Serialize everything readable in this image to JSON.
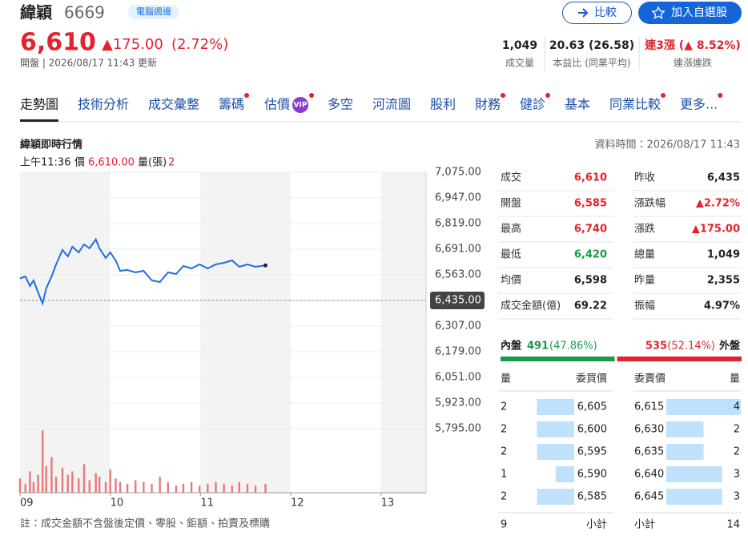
{
  "header": {
    "name": "緯穎",
    "code": "6669",
    "tag": "電腦週邊",
    "compare_button": "比較",
    "watchlist_button": "加入自選股",
    "price": "6,610",
    "change": "▲175.00",
    "change_pct": "(2.72%)",
    "status": "開盤 | 2026/08/17 11:43 更新",
    "stats": [
      {
        "value": "1,049",
        "label": "成交量"
      },
      {
        "value": "20.63 (26.58)",
        "label": "本益比 (同業平均)"
      },
      {
        "value": "連3漲 (▲ 8.52%)",
        "label": "連漲連跌",
        "color": "#e3232d"
      }
    ]
  },
  "tabs": [
    {
      "label": "走勢圖",
      "active": true
    },
    {
      "label": "技術分析"
    },
    {
      "label": "成交彙整"
    },
    {
      "label": "籌碼",
      "dot": true
    },
    {
      "label": "估價",
      "badge": "VIP",
      "dot": true
    },
    {
      "label": "多空"
    },
    {
      "label": "河流圖"
    },
    {
      "label": "股利"
    },
    {
      "label": "財務",
      "dot": true
    },
    {
      "label": "健診",
      "dot": true
    },
    {
      "label": "基本"
    },
    {
      "label": "同業比較",
      "dot": true
    },
    {
      "label": "更多...",
      "dot": true
    }
  ],
  "section": {
    "title": "緯穎即時行情",
    "data_time": "資料時間：2026/08/17 11:43",
    "cursor": {
      "time": "上午11:36",
      "price_label": "價",
      "price": "6,610.00",
      "volume_label": "量(張)",
      "volume": "2"
    }
  },
  "chart_data": {
    "type": "line",
    "x": [
      9,
      9.06,
      9.11,
      9.15,
      9.2,
      9.25,
      9.29,
      9.35,
      9.4,
      9.47,
      9.53,
      9.58,
      9.65,
      9.71,
      9.77,
      9.84,
      9.88,
      9.95,
      10.0,
      10.06,
      10.11,
      10.19,
      10.28,
      10.37,
      10.46,
      10.55,
      10.64,
      10.73,
      10.81,
      10.9,
      10.99,
      11.08,
      11.17,
      11.26,
      11.35,
      11.43,
      11.52,
      11.61,
      11.72
    ],
    "series": [
      {
        "type": "line",
        "color": "#1f6fe0",
        "values": [
          6545,
          6555,
          6507,
          6535,
          6475,
          6420,
          6495,
          6555,
          6615,
          6687,
          6655,
          6703,
          6675,
          6715,
          6695,
          6740,
          6695,
          6647,
          6675,
          6635,
          6583,
          6587,
          6575,
          6583,
          6535,
          6527,
          6575,
          6567,
          6607,
          6595,
          6615,
          6595,
          6615,
          6623,
          6635,
          6603,
          6615,
          6603,
          6610
        ]
      },
      {
        "type": "bar",
        "color": "#e8797b",
        "values": [
          8,
          5,
          12,
          6,
          10,
          35,
          15,
          20,
          9,
          14,
          10,
          12,
          8,
          16,
          7,
          11,
          9,
          6,
          13,
          8,
          6,
          5,
          7,
          6,
          5,
          9,
          6,
          4,
          5,
          6,
          4,
          5,
          6,
          5,
          4,
          6,
          5,
          4,
          5
        ]
      }
    ],
    "xlim": [
      9,
      13.5
    ],
    "xticks": [
      {
        "value": 9,
        "label": "09"
      },
      {
        "value": 10,
        "label": "10"
      },
      {
        "value": 11,
        "label": "11"
      },
      {
        "value": 12,
        "label": "12"
      },
      {
        "value": 13,
        "label": "13"
      }
    ],
    "ylim": [
      5795,
      7075
    ],
    "yticks": [
      {
        "value": 7075,
        "label": "7,075.00"
      },
      {
        "value": 6947,
        "label": "6,947.00"
      },
      {
        "value": 6819,
        "label": "6,819.00"
      },
      {
        "value": 6691,
        "label": "6,691.00"
      },
      {
        "value": 6563,
        "label": "6,563.00"
      },
      {
        "value": 6435,
        "label": "6,435.00"
      },
      {
        "value": 6307,
        "label": "6,307.00"
      },
      {
        "value": 6179,
        "label": "6,179.00"
      },
      {
        "value": 6051,
        "label": "6,051.00"
      },
      {
        "value": 5923,
        "label": "5,923.00"
      },
      {
        "value": 5795,
        "label": "5,795.00"
      }
    ],
    "reference_line": 6435,
    "grid": true
  },
  "quote": {
    "rows": [
      [
        {
          "text": "成交"
        },
        {
          "text": "6,610",
          "color": "#e3232d"
        },
        {
          "text": "昨收"
        },
        {
          "text": "6,435"
        }
      ],
      [
        {
          "text": "開盤"
        },
        {
          "text": "6,585",
          "color": "#e3232d"
        },
        {
          "text": "漲跌幅"
        },
        {
          "text": "▲2.72%",
          "color": "#e3232d"
        }
      ],
      [
        {
          "text": "最高"
        },
        {
          "text": "6,740",
          "color": "#e3232d"
        },
        {
          "text": "漲跌"
        },
        {
          "text": "▲175.00",
          "color": "#e3232d"
        }
      ],
      [
        {
          "text": "最低"
        },
        {
          "text": "6,420",
          "color": "#1a9a4a"
        },
        {
          "text": "總量"
        },
        {
          "text": "1,049"
        }
      ],
      [
        {
          "text": "均價"
        },
        {
          "text": "6,598"
        },
        {
          "text": "昨量"
        },
        {
          "text": "2,355"
        }
      ],
      [
        {
          "text": "成交金額(億)"
        },
        {
          "text": "69.22"
        },
        {
          "text": "振幅"
        },
        {
          "text": "4.97%"
        }
      ]
    ]
  },
  "flow": {
    "inner_label": "內盤",
    "inner": "491",
    "inner_pct": "(47.86%)",
    "outer": "535",
    "outer_pct": "(52.14%)",
    "outer_label": "外盤"
  },
  "order_book": {
    "headers": [
      "量",
      "委買價",
      "委賣價",
      "量"
    ],
    "rows": [
      [
        "2",
        "6,605",
        "6,615",
        "4"
      ],
      [
        "2",
        "6,600",
        "6,630",
        "2"
      ],
      [
        "2",
        "6,595",
        "6,635",
        "2"
      ],
      [
        "1",
        "6,590",
        "6,640",
        "3"
      ],
      [
        "2",
        "6,585",
        "6,645",
        "3"
      ]
    ],
    "totals": [
      "9",
      "小計",
      "小計",
      "14"
    ]
  },
  "footnote": "註：成交金額不含盤後定價、零股、鉅額、拍賣及標購"
}
